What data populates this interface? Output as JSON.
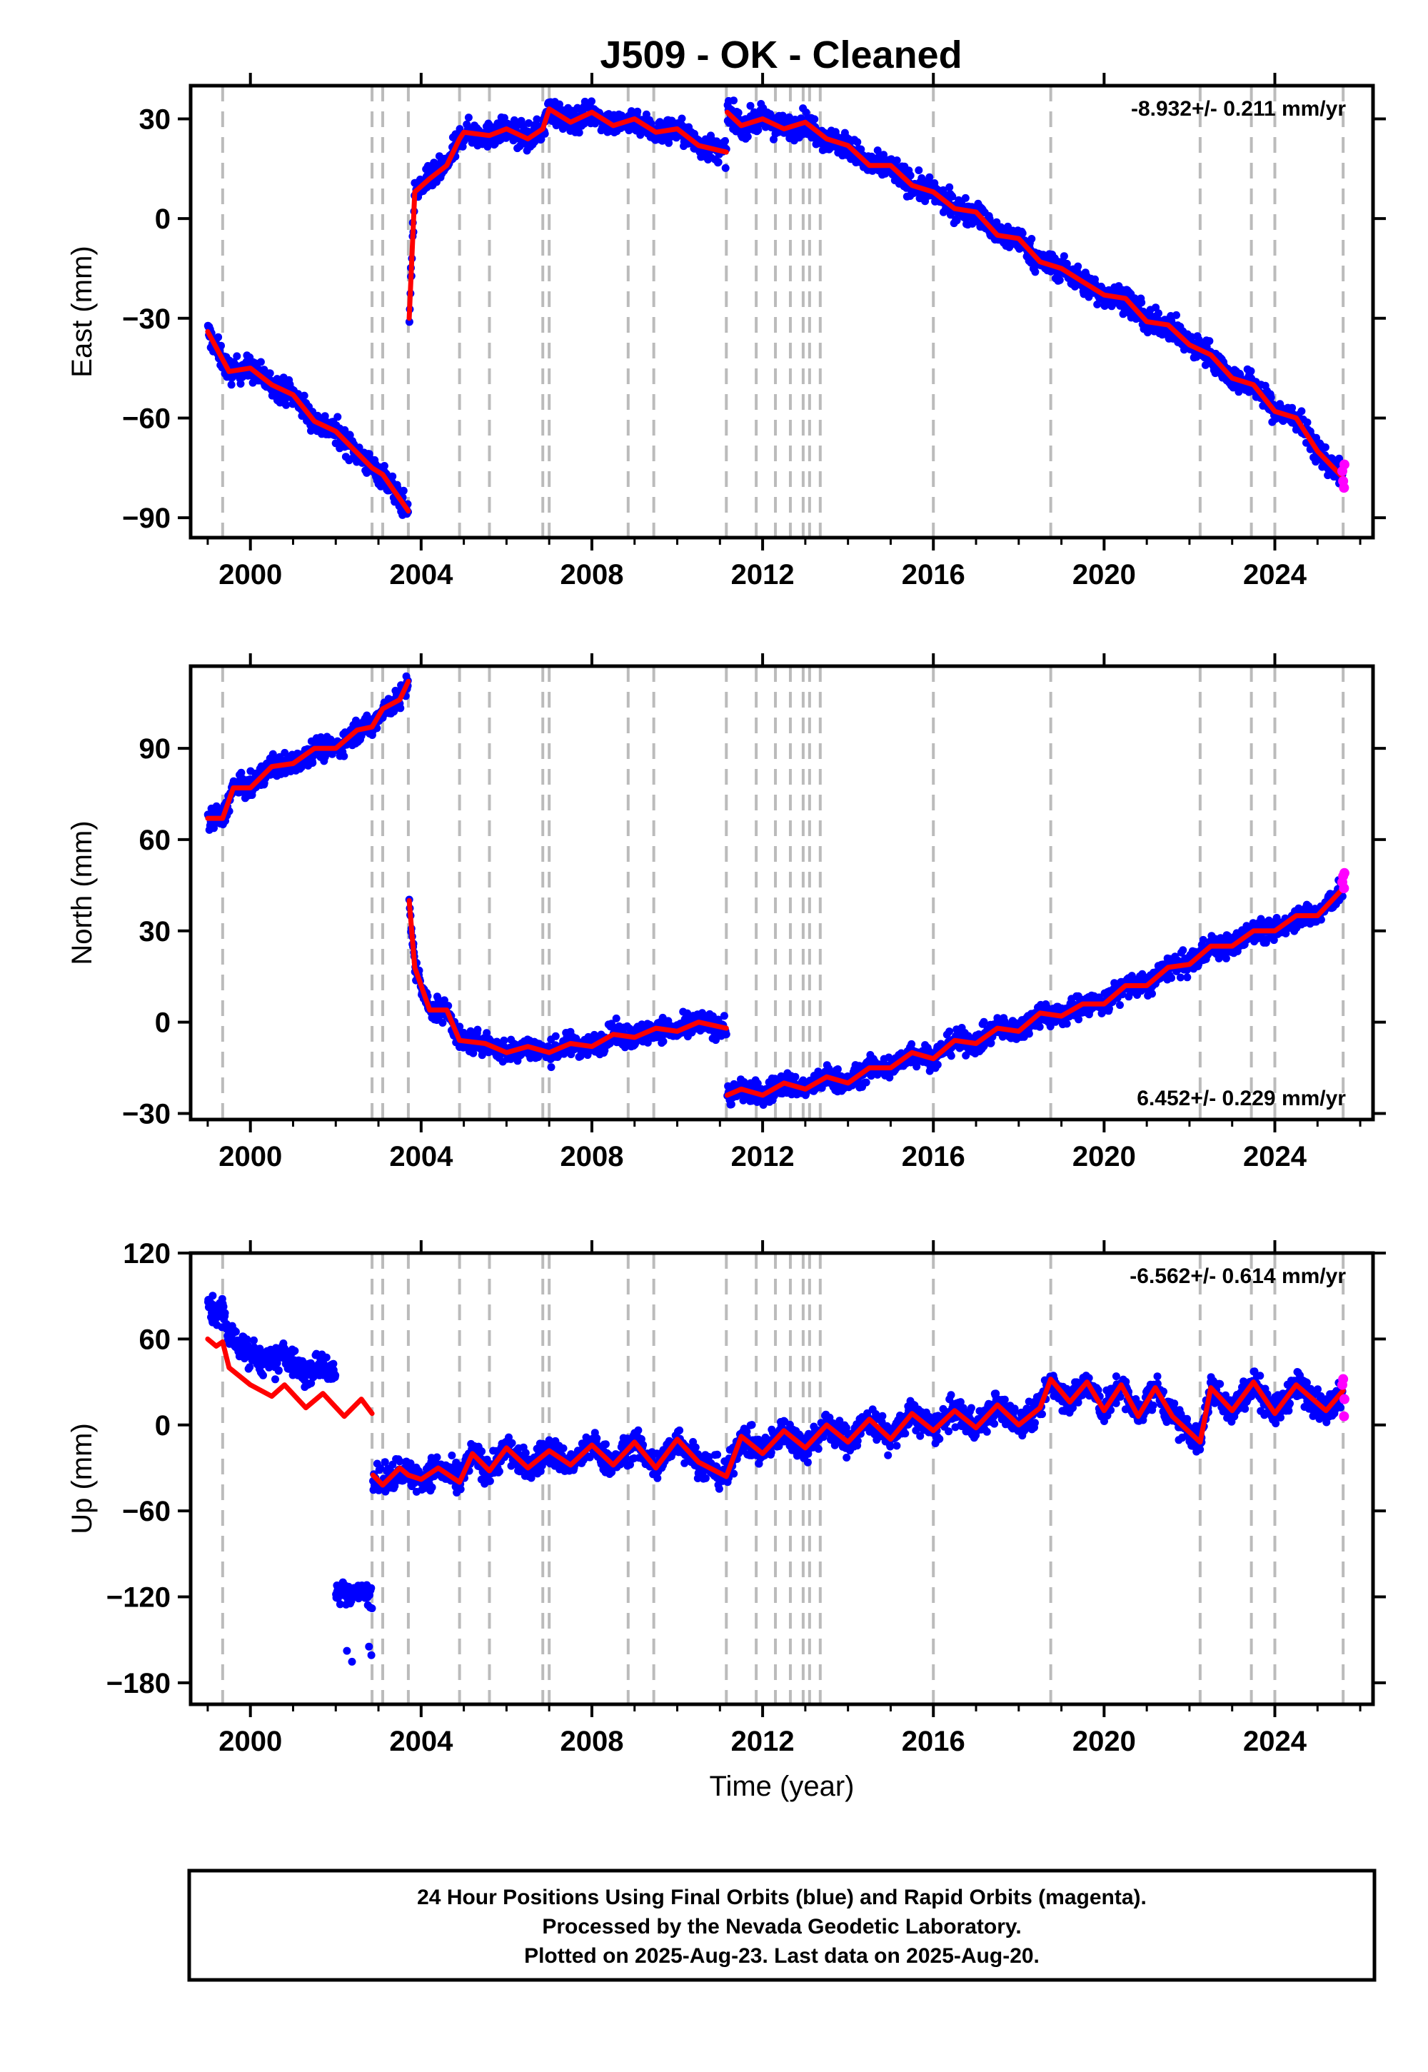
{
  "page": {
    "title": "J509  - OK - Cleaned",
    "footer_lines": [
      "24 Hour Positions Using Final Orbits (blue) and Rapid Orbits (magenta).",
      "Processed by the Nevada Geodetic Laboratory.",
      "Plotted on 2025-Aug-23. Last data on 2025-Aug-20."
    ]
  },
  "colors": {
    "final_orbits": "#0000ff",
    "rapid_orbits": "#ff00ff",
    "model": "#ff0000",
    "event_lines": "#bbbbbb"
  },
  "chart_data": [
    {
      "type": "scatter",
      "ylabel": "East (mm)",
      "xlabel": "",
      "rate_text": "-8.932+/- 0.211 mm/yr",
      "rate_position": "top-right",
      "xlim": [
        1998.6,
        2026.3
      ],
      "ylim": [
        -96,
        40
      ],
      "xticks": [
        2000,
        2004,
        2008,
        2012,
        2016,
        2020,
        2024
      ],
      "yticks": [
        -90,
        -60,
        -30,
        0,
        30
      ],
      "ytick_labels": [
        "−90",
        "−60",
        "−30",
        "0",
        "30"
      ],
      "grid": false,
      "event_lines_x": [
        1999.35,
        2002.85,
        2003.1,
        2003.7,
        2004.9,
        2005.6,
        2006.85,
        2007.0,
        2008.85,
        2009.45,
        2011.15,
        2011.85,
        2012.3,
        2012.65,
        2012.95,
        2013.1,
        2013.35,
        2016.0,
        2018.75,
        2022.25,
        2023.45,
        2024.0,
        2025.6
      ],
      "model_segments": [
        [
          [
            1999.0,
            -34
          ],
          [
            1999.5,
            -46
          ],
          [
            2000.0,
            -45
          ],
          [
            2000.5,
            -50
          ],
          [
            2001.0,
            -53
          ],
          [
            2001.5,
            -61
          ],
          [
            2002.0,
            -64
          ],
          [
            2002.85,
            -75
          ],
          [
            2003.1,
            -77
          ],
          [
            2003.7,
            -88
          ]
        ],
        [
          [
            2003.72,
            -30
          ],
          [
            2003.85,
            8
          ],
          [
            2004.2,
            12
          ],
          [
            2004.6,
            16
          ],
          [
            2004.9,
            24
          ],
          [
            2005.0,
            26
          ],
          [
            2005.6,
            25
          ],
          [
            2006.0,
            27
          ],
          [
            2006.5,
            24
          ],
          [
            2006.85,
            27
          ],
          [
            2007.0,
            33
          ],
          [
            2007.5,
            29
          ],
          [
            2008.0,
            32
          ],
          [
            2008.5,
            28
          ],
          [
            2009.0,
            30
          ],
          [
            2009.5,
            26
          ],
          [
            2010.0,
            27
          ],
          [
            2010.5,
            22
          ],
          [
            2011.15,
            20
          ]
        ],
        [
          [
            2011.17,
            32
          ],
          [
            2011.5,
            28
          ],
          [
            2012.0,
            30
          ],
          [
            2012.5,
            27
          ],
          [
            2013.0,
            29
          ],
          [
            2013.5,
            24
          ],
          [
            2014.0,
            22
          ],
          [
            2014.5,
            16
          ],
          [
            2015.0,
            16
          ],
          [
            2015.5,
            10
          ],
          [
            2016.0,
            8
          ],
          [
            2016.5,
            3
          ],
          [
            2017.0,
            2
          ],
          [
            2017.5,
            -5
          ],
          [
            2018.0,
            -6
          ],
          [
            2018.5,
            -13
          ],
          [
            2019.0,
            -15
          ],
          [
            2019.5,
            -19
          ],
          [
            2020.0,
            -23
          ],
          [
            2020.5,
            -24
          ],
          [
            2021.0,
            -31
          ],
          [
            2021.5,
            -32
          ],
          [
            2022.0,
            -38
          ],
          [
            2022.5,
            -41
          ],
          [
            2023.0,
            -48
          ],
          [
            2023.5,
            -50
          ],
          [
            2024.0,
            -58
          ],
          [
            2024.5,
            -60
          ],
          [
            2025.0,
            -70
          ],
          [
            2025.6,
            -78
          ]
        ]
      ],
      "rapid_points": [
        [
          2025.58,
          -76
        ],
        [
          2025.6,
          -79
        ],
        [
          2025.62,
          -81
        ],
        [
          2025.63,
          -74
        ]
      ]
    },
    {
      "type": "scatter",
      "ylabel": "North (mm)",
      "xlabel": "",
      "rate_text": "6.452+/- 0.229 mm/yr",
      "rate_position": "bottom-right",
      "xlim": [
        1998.6,
        2026.3
      ],
      "ylim": [
        -32,
        117
      ],
      "xticks": [
        2000,
        2004,
        2008,
        2012,
        2016,
        2020,
        2024
      ],
      "yticks": [
        -30,
        0,
        30,
        60,
        90
      ],
      "ytick_labels": [
        "−30",
        "0",
        "30",
        "60",
        "90"
      ],
      "grid": false,
      "event_lines_x": [
        1999.35,
        2002.85,
        2003.1,
        2003.7,
        2004.9,
        2005.6,
        2006.85,
        2007.0,
        2008.85,
        2009.45,
        2011.15,
        2011.85,
        2012.3,
        2012.65,
        2012.95,
        2013.1,
        2013.35,
        2016.0,
        2018.75,
        2022.25,
        2023.45,
        2024.0,
        2025.6
      ],
      "model_segments": [
        [
          [
            1999.0,
            67
          ],
          [
            1999.35,
            67
          ],
          [
            1999.6,
            77
          ],
          [
            2000.0,
            77
          ],
          [
            2000.5,
            84
          ],
          [
            2001.0,
            85
          ],
          [
            2001.5,
            90
          ],
          [
            2002.0,
            90
          ],
          [
            2002.5,
            96
          ],
          [
            2002.85,
            97
          ],
          [
            2003.1,
            103
          ],
          [
            2003.5,
            106
          ],
          [
            2003.7,
            112
          ]
        ],
        [
          [
            2003.72,
            40
          ],
          [
            2003.85,
            18
          ],
          [
            2004.2,
            4
          ],
          [
            2004.6,
            4
          ],
          [
            2004.9,
            -6
          ],
          [
            2005.5,
            -7
          ],
          [
            2006.0,
            -10
          ],
          [
            2006.5,
            -8
          ],
          [
            2007.0,
            -10
          ],
          [
            2007.5,
            -7
          ],
          [
            2008.0,
            -8
          ],
          [
            2008.5,
            -4
          ],
          [
            2009.0,
            -5
          ],
          [
            2009.5,
            -2
          ],
          [
            2010.0,
            -3
          ],
          [
            2010.5,
            0
          ],
          [
            2011.15,
            -2
          ]
        ],
        [
          [
            2011.17,
            -24
          ],
          [
            2011.5,
            -22
          ],
          [
            2012.0,
            -24
          ],
          [
            2012.5,
            -20
          ],
          [
            2013.0,
            -22
          ],
          [
            2013.5,
            -18
          ],
          [
            2014.0,
            -20
          ],
          [
            2014.5,
            -15
          ],
          [
            2015.0,
            -15
          ],
          [
            2015.5,
            -10
          ],
          [
            2016.0,
            -12
          ],
          [
            2016.5,
            -6
          ],
          [
            2017.0,
            -7
          ],
          [
            2017.5,
            -2
          ],
          [
            2018.0,
            -3
          ],
          [
            2018.5,
            3
          ],
          [
            2019.0,
            2
          ],
          [
            2019.5,
            6
          ],
          [
            2020.0,
            6
          ],
          [
            2020.5,
            12
          ],
          [
            2021.0,
            12
          ],
          [
            2021.5,
            18
          ],
          [
            2022.0,
            19
          ],
          [
            2022.5,
            25
          ],
          [
            2023.0,
            25
          ],
          [
            2023.5,
            30
          ],
          [
            2024.0,
            30
          ],
          [
            2024.5,
            35
          ],
          [
            2025.0,
            35
          ],
          [
            2025.6,
            44
          ]
        ]
      ],
      "rapid_points": [
        [
          2025.58,
          46
        ],
        [
          2025.6,
          48
        ],
        [
          2025.62,
          44
        ],
        [
          2025.63,
          49
        ]
      ]
    },
    {
      "type": "scatter",
      "ylabel": "Up (mm)",
      "xlabel": "Time (year)",
      "rate_text": "-6.562+/- 0.614 mm/yr",
      "rate_position": "top-right",
      "xlim": [
        1998.6,
        2026.3
      ],
      "ylim": [
        -195,
        120
      ],
      "xticks": [
        2000,
        2004,
        2008,
        2012,
        2016,
        2020,
        2024
      ],
      "yticks": [
        -180,
        -120,
        -60,
        0,
        60,
        120
      ],
      "ytick_labels": [
        "−180",
        "−120",
        "−60",
        "0",
        "60",
        "120"
      ],
      "grid": false,
      "event_lines_x": [
        1999.35,
        2002.85,
        2003.1,
        2003.7,
        2004.9,
        2005.6,
        2006.85,
        2007.0,
        2008.85,
        2009.45,
        2011.15,
        2011.85,
        2012.3,
        2012.65,
        2012.95,
        2013.1,
        2013.35,
        2016.0,
        2018.75,
        2022.25,
        2023.45,
        2024.0,
        2025.6
      ],
      "model_segments": [
        [
          [
            1999.0,
            60
          ],
          [
            1999.2,
            55
          ],
          [
            1999.35,
            58
          ],
          [
            1999.5,
            40
          ],
          [
            2000.0,
            28
          ],
          [
            2000.5,
            20
          ],
          [
            2000.8,
            28
          ],
          [
            2001.3,
            12
          ],
          [
            2001.7,
            22
          ],
          [
            2002.2,
            6
          ],
          [
            2002.6,
            18
          ],
          [
            2002.85,
            8
          ]
        ],
        [
          [
            2002.87,
            -35
          ],
          [
            2003.1,
            -42
          ],
          [
            2003.5,
            -30
          ],
          [
            2003.7,
            -35
          ],
          [
            2004.0,
            -38
          ],
          [
            2004.4,
            -30
          ],
          [
            2004.9,
            -40
          ],
          [
            2005.2,
            -20
          ],
          [
            2005.6,
            -32
          ],
          [
            2006.0,
            -16
          ],
          [
            2006.5,
            -30
          ],
          [
            2007.0,
            -18
          ],
          [
            2007.5,
            -28
          ],
          [
            2008.0,
            -14
          ],
          [
            2008.5,
            -28
          ],
          [
            2009.0,
            -12
          ],
          [
            2009.5,
            -30
          ],
          [
            2010.0,
            -10
          ],
          [
            2010.5,
            -26
          ],
          [
            2011.15,
            -36
          ],
          [
            2011.5,
            -8
          ],
          [
            2012.0,
            -20
          ],
          [
            2012.5,
            -4
          ],
          [
            2013.0,
            -16
          ],
          [
            2013.5,
            0
          ],
          [
            2014.0,
            -12
          ],
          [
            2014.5,
            4
          ],
          [
            2015.0,
            -10
          ],
          [
            2015.5,
            8
          ],
          [
            2016.0,
            -4
          ],
          [
            2016.5,
            10
          ],
          [
            2017.0,
            -2
          ],
          [
            2017.5,
            14
          ],
          [
            2018.0,
            0
          ],
          [
            2018.5,
            12
          ],
          [
            2018.75,
            32
          ],
          [
            2019.2,
            16
          ],
          [
            2019.6,
            30
          ],
          [
            2020.0,
            10
          ],
          [
            2020.4,
            28
          ],
          [
            2020.8,
            6
          ],
          [
            2021.2,
            26
          ],
          [
            2021.6,
            6
          ],
          [
            2022.25,
            -12
          ],
          [
            2022.5,
            26
          ],
          [
            2023.0,
            10
          ],
          [
            2023.5,
            30
          ],
          [
            2024.0,
            8
          ],
          [
            2024.5,
            28
          ],
          [
            2025.2,
            10
          ],
          [
            2025.6,
            24
          ]
        ]
      ],
      "rapid_points": [
        [
          2025.58,
          28
        ],
        [
          2025.6,
          32
        ],
        [
          2025.62,
          6
        ],
        [
          2025.63,
          18
        ]
      ]
    }
  ]
}
